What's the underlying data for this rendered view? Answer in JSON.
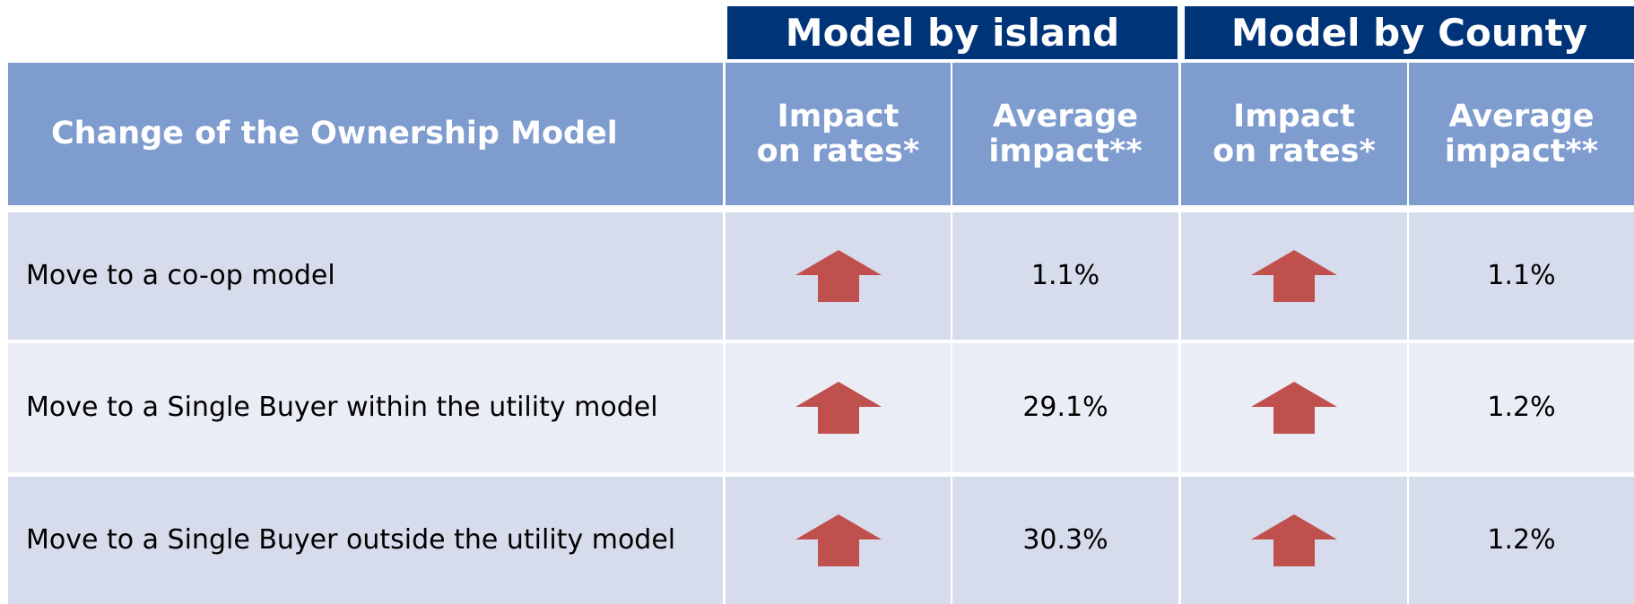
{
  "groups": [
    "Model by island",
    "Model by County"
  ],
  "table": {
    "header": [
      [
        "Change of the Ownership Model"
      ],
      [
        "Impact",
        "on rates*"
      ],
      [
        "Average",
        "impact**"
      ],
      [
        "Impact",
        "on rates*"
      ],
      [
        "Average",
        "impact**"
      ]
    ],
    "rows": [
      [
        "Move to a co-op model",
        "1.1%",
        "1.1%"
      ],
      [
        "Move to a Single Buyer within the utility model",
        "29.1%",
        "1.2%"
      ],
      [
        "Move to a Single Buyer outside the utility model",
        "30.3%",
        "1.2%"
      ]
    ]
  }
}
